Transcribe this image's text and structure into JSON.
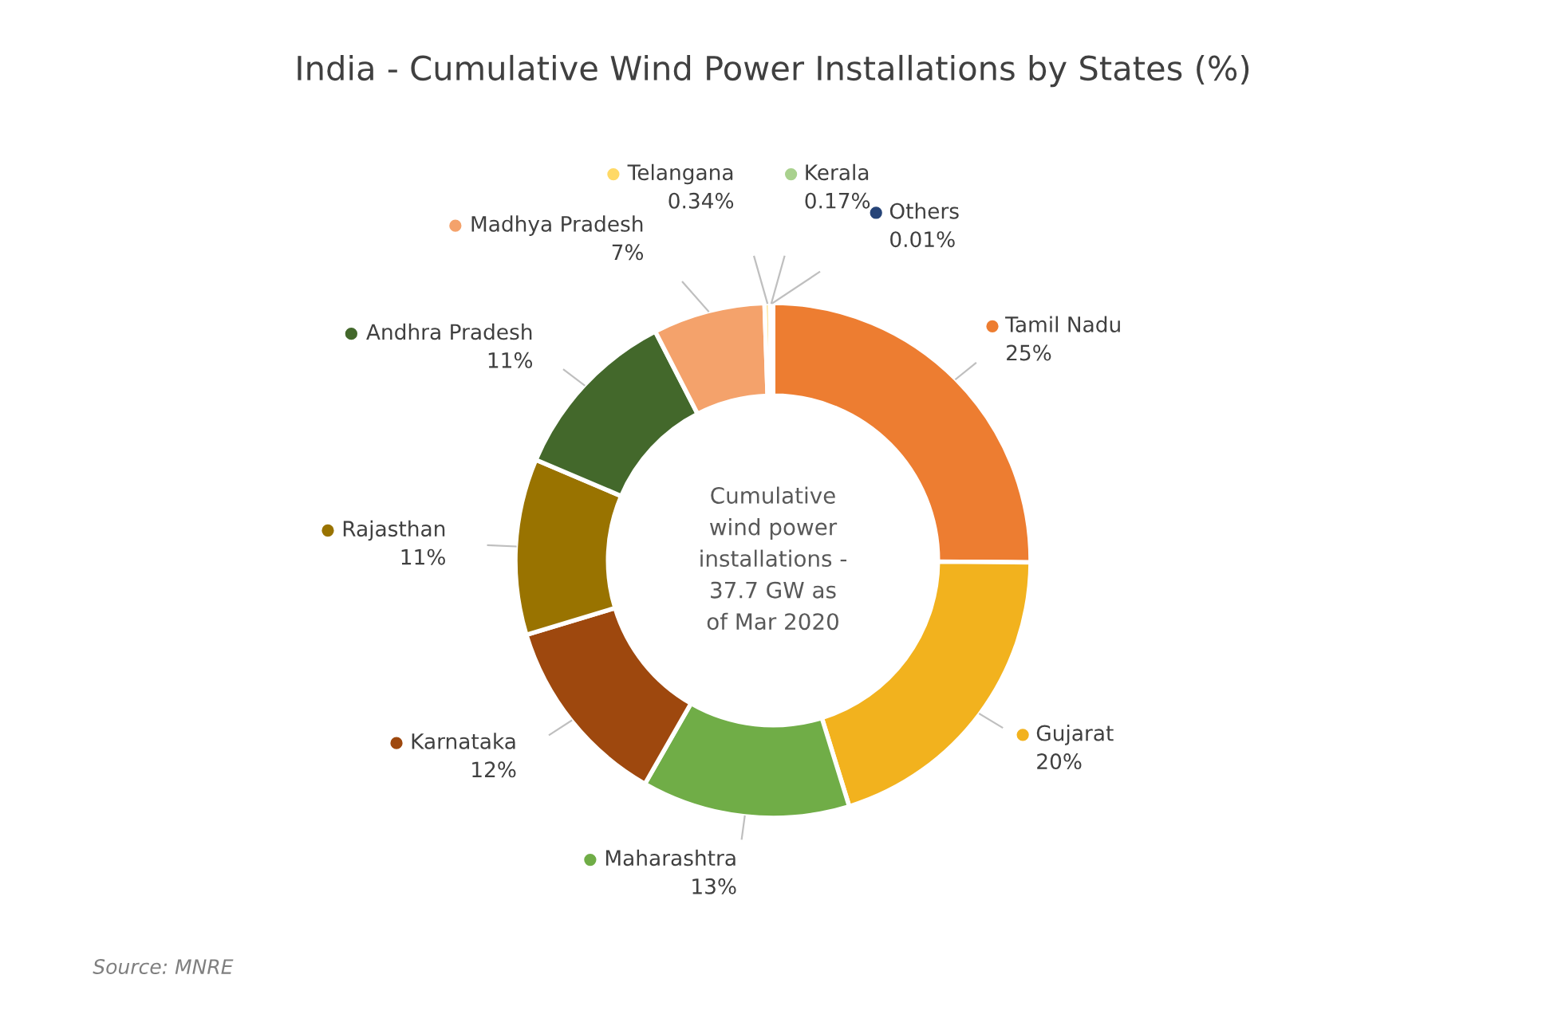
{
  "chart_data": {
    "type": "donut",
    "title": "India - Cumulative Wind Power Installations by States (%)",
    "categories": [
      "Tamil Nadu",
      "Gujarat",
      "Maharashtra",
      "Karnataka",
      "Rajasthan",
      "Andhra Pradesh",
      "Madhya Pradesh",
      "Telangana",
      "Kerala",
      "Others"
    ],
    "values": [
      25,
      20,
      13,
      12,
      11,
      11,
      7,
      0.34,
      0.17,
      0.01
    ],
    "value_labels": [
      "25%",
      "20%",
      "13%",
      "12%",
      "11%",
      "11%",
      "7%",
      "0.34%",
      "0.17%",
      "0.01%"
    ],
    "colors": [
      "#ed7d31",
      "#f2b21e",
      "#70ad47",
      "#9e480e",
      "#997300",
      "#43682b",
      "#f4a26b",
      "#ffd966",
      "#a9d18e",
      "#264478"
    ],
    "annotations": [
      "Cumulative\nwind power\ninstallations -\n37.7 GW as\nof Mar 2020",
      "Source: MNRE"
    ],
    "legend": "center"
  }
}
